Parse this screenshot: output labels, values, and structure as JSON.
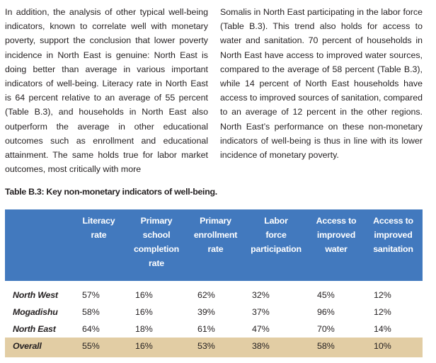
{
  "body_text": {
    "left_column": "In addition, the analysis of other typical well-being indicators, known to correlate well with monetary poverty, support the conclusion that lower poverty incidence in North East is genuine: North East is doing better than average in various important indicators of well-being. Literacy rate in North East is 64 percent relative to an average of 55 percent (Table B.3), and households in North East also outperform the average in other educational outcomes such as enrollment and educational attainment. The same holds true for labor market outcomes, most critically with more",
    "right_column": "Somalis in North East participating in the labor force (Table B.3). This trend also holds for access to water and sanitation. 70 percent of households in North East have access to improved water sources, compared to the average of 58 percent (Table B.3), while 14 percent of North East households have access to improved sources of sanitation, compared to an average of 12 percent in the other regions. North East’s performance on these non-monetary indicators of well-being is thus in line with its lower incidence of monetary poverty."
  },
  "table": {
    "caption": "Table B.3: Key non-monetary indicators of well-being.",
    "columns": [
      {
        "lines": [
          "Literacy",
          "rate"
        ]
      },
      {
        "lines": [
          "Primary",
          "school",
          "completion",
          "rate"
        ]
      },
      {
        "lines": [
          "Primary",
          "enrollment",
          "rate"
        ]
      },
      {
        "lines": [
          "Labor",
          "force",
          "participation"
        ]
      },
      {
        "lines": [
          "Access to",
          "improved",
          "water"
        ]
      },
      {
        "lines": [
          "Access to",
          "improved",
          "sanitation"
        ]
      }
    ],
    "rows": [
      {
        "region": "North West",
        "values": [
          "57%",
          "16%",
          "62%",
          "32%",
          "45%",
          "12%"
        ]
      },
      {
        "region": "Mogadishu",
        "values": [
          "58%",
          "16%",
          "39%",
          "37%",
          "96%",
          "12%"
        ]
      },
      {
        "region": "North East",
        "values": [
          "64%",
          "18%",
          "61%",
          "47%",
          "70%",
          "14%"
        ]
      },
      {
        "region": "Overall",
        "values": [
          "55%",
          "16%",
          "53%",
          "38%",
          "58%",
          "10%"
        ]
      }
    ],
    "colors": {
      "header_bg": "#4279be",
      "header_text": "#ffffff",
      "overall_bg": "#e2cda4"
    }
  }
}
